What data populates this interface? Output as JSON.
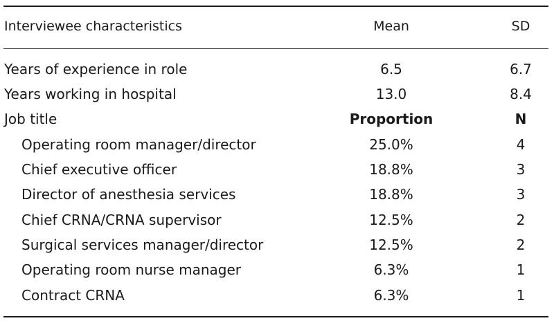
{
  "table": {
    "headers": {
      "characteristic": "Interviewee characteristics",
      "mean": "Mean",
      "sd": "SD"
    },
    "summary_rows": [
      {
        "label": "Years of experience in role",
        "mean": "6.5",
        "sd": "6.7"
      },
      {
        "label": "Years working in hospital",
        "mean": "13.0",
        "sd": "8.4"
      }
    ],
    "job_title": {
      "label": "Job title",
      "proportion_header": "Proportion",
      "n_header": "N"
    },
    "job_rows": [
      {
        "label": "Operating room manager/director",
        "proportion": "25.0%",
        "n": "4"
      },
      {
        "label": "Chief executive officer",
        "proportion": "18.8%",
        "n": "3"
      },
      {
        "label": "Director of anesthesia services",
        "proportion": "18.8%",
        "n": "3"
      },
      {
        "label": "Chief CRNA/CRNA supervisor",
        "proportion": "12.5%",
        "n": "2"
      },
      {
        "label": "Surgical services manager/director",
        "proportion": "12.5%",
        "n": "2"
      },
      {
        "label": "Operating room nurse manager",
        "proportion": "6.3%",
        "n": "1"
      },
      {
        "label": "Contract CRNA",
        "proportion": "6.3%",
        "n": "1"
      }
    ]
  }
}
